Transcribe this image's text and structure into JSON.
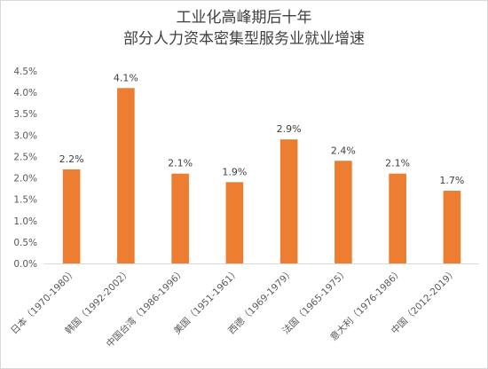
{
  "chart_data": {
    "type": "bar",
    "title_lines": [
      "工业化高峰期后十年",
      "部分人力资本密集型服务业就业增速"
    ],
    "categories": [
      "日本（1970-1980）",
      "韩国（1992-2002）",
      "中国台湾（1986-1996）",
      "美国（1951-1961）",
      "西德（1969-1979）",
      "法国（1965-1975）",
      "意大利（1976-1986）",
      "中国（2012-2019）"
    ],
    "values": [
      2.2,
      4.1,
      2.1,
      1.9,
      2.9,
      2.4,
      2.1,
      1.7
    ],
    "data_labels": [
      "2.2%",
      "4.1%",
      "2.1%",
      "1.9%",
      "2.9%",
      "2.4%",
      "2.1%",
      "1.7%"
    ],
    "y_ticks": [
      "0.0%",
      "0.5%",
      "1.0%",
      "1.5%",
      "2.0%",
      "2.5%",
      "3.0%",
      "3.5%",
      "4.0%",
      "4.5%"
    ],
    "ylim": [
      0,
      4.5
    ],
    "grid": false,
    "legend": "none",
    "bar_color": "#ed7d31"
  }
}
